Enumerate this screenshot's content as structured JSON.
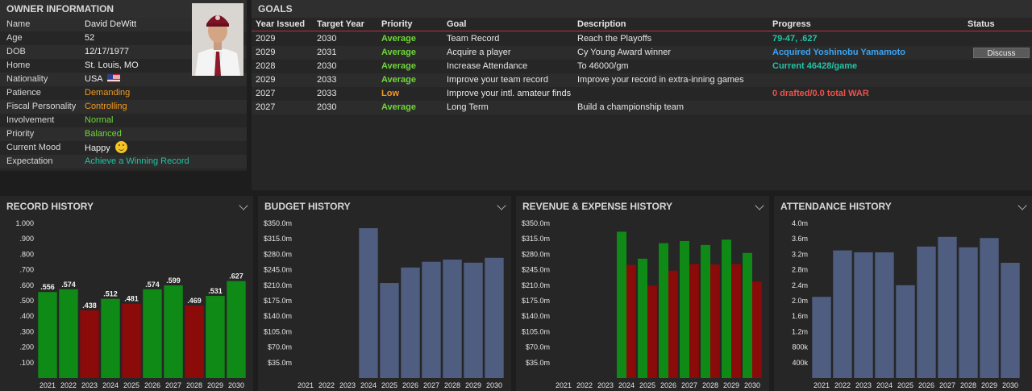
{
  "owner": {
    "title": "OWNER INFORMATION",
    "rows": [
      {
        "label": "Name",
        "value": "David DeWitt",
        "color": ""
      },
      {
        "label": "Age",
        "value": "52",
        "color": ""
      },
      {
        "label": "DOB",
        "value": "12/17/1977",
        "color": ""
      },
      {
        "label": "Home",
        "value": "St. Louis, MO",
        "color": ""
      },
      {
        "label": "Nationality",
        "value": "USA",
        "color": ""
      },
      {
        "label": "Patience",
        "value": "Demanding",
        "color": "orange"
      },
      {
        "label": "Fiscal Personality",
        "value": "Controlling",
        "color": "orange"
      },
      {
        "label": "Involvement",
        "value": "Normal",
        "color": "green"
      },
      {
        "label": "Priority",
        "value": "Balanced",
        "color": "green"
      },
      {
        "label": "Current Mood",
        "value": "Happy",
        "color": ""
      },
      {
        "label": "Expectation",
        "value": "Achieve a Winning Record",
        "color": "teal"
      }
    ]
  },
  "goals": {
    "title": "GOALS",
    "headers": [
      "Year Issued",
      "Target Year",
      "Priority",
      "Goal",
      "Description",
      "Progress",
      "Status"
    ],
    "rows": [
      {
        "issued": "2029",
        "target": "2030",
        "priority": "Average",
        "pcolor": "green",
        "goal": "Team Record",
        "desc": "Reach the Playoffs",
        "progress": "79-47, .627",
        "prcolor": "teal",
        "status": ""
      },
      {
        "issued": "2029",
        "target": "2031",
        "priority": "Average",
        "pcolor": "green",
        "goal": "Acquire a player",
        "desc": "Cy Young Award winner",
        "progress": "Acquired Yoshinobu Yamamoto",
        "prcolor": "blue",
        "status": "Discuss"
      },
      {
        "issued": "2028",
        "target": "2030",
        "priority": "Average",
        "pcolor": "green",
        "goal": "Increase Attendance",
        "desc": "To 46000/gm",
        "progress": "Current 46428/game",
        "prcolor": "teal",
        "status": ""
      },
      {
        "issued": "2029",
        "target": "2033",
        "priority": "Average",
        "pcolor": "green",
        "goal": "Improve your team record",
        "desc": "Improve your record in extra-inning games",
        "progress": "",
        "prcolor": "",
        "status": ""
      },
      {
        "issued": "2027",
        "target": "2033",
        "priority": "Low",
        "pcolor": "orange",
        "goal": "Improve your intl. amateur finds",
        "desc": "",
        "progress": "0 drafted/0.0 total WAR",
        "prcolor": "red",
        "status": ""
      },
      {
        "issued": "2027",
        "target": "2030",
        "priority": "Average",
        "pcolor": "green",
        "goal": "Long Term",
        "desc": "Build a championship team",
        "progress": "",
        "prcolor": "",
        "status": ""
      }
    ]
  },
  "chart_data": [
    {
      "type": "bar",
      "title": "RECORD HISTORY",
      "categories": [
        "2021",
        "2022",
        "2023",
        "2024",
        "2025",
        "2026",
        "2027",
        "2028",
        "2029",
        "2030"
      ],
      "values": [
        0.556,
        0.574,
        0.438,
        0.512,
        0.481,
        0.574,
        0.599,
        0.469,
        0.531,
        0.627
      ],
      "data_labels": [
        ".556",
        ".574",
        ".438",
        ".512",
        ".481",
        ".574",
        ".599",
        ".469",
        ".531",
        ".627"
      ],
      "ylim": [
        0,
        1.0
      ],
      "yticks": [
        ".100",
        ".200",
        ".300",
        ".400",
        ".500",
        ".600",
        ".700",
        ".800",
        ".900",
        "1.000"
      ],
      "colors": {
        "above": "#0f8a17",
        "below": "#8b0a0a"
      }
    },
    {
      "type": "bar",
      "title": "BUDGET HISTORY",
      "categories": [
        "2021",
        "2022",
        "2023",
        "2024",
        "2025",
        "2026",
        "2027",
        "2028",
        "2029",
        "2030"
      ],
      "values": [
        null,
        null,
        null,
        339,
        215,
        250,
        263,
        268,
        261,
        272
      ],
      "ylim": [
        0,
        350
      ],
      "yticks": [
        "$35.0m",
        "$70.0m",
        "$105.0m",
        "$140.0m",
        "$175.0m",
        "$210.0m",
        "$245.0m",
        "$280.0m",
        "$315.0m",
        "$350.0m"
      ],
      "color": "#4e5d80"
    },
    {
      "type": "bar",
      "title": "REVENUE & EXPENSE HISTORY",
      "categories": [
        "2021",
        "2022",
        "2023",
        "2024",
        "2025",
        "2026",
        "2027",
        "2028",
        "2029",
        "2030"
      ],
      "series": [
        {
          "values": [
            null,
            null,
            null,
            331,
            270,
            305,
            310,
            301,
            313,
            283
          ],
          "color": "#0f8a17"
        },
        {
          "values": [
            null,
            null,
            null,
            256,
            209,
            243,
            258,
            257,
            258,
            218
          ],
          "color": "#8b0a0a"
        }
      ],
      "ylim": [
        0,
        350
      ],
      "yticks": [
        "$35.0m",
        "$70.0m",
        "$105.0m",
        "$140.0m",
        "$175.0m",
        "$210.0m",
        "$245.0m",
        "$280.0m",
        "$315.0m",
        "$350.0m"
      ]
    },
    {
      "type": "bar",
      "title": "ATTENDANCE HISTORY",
      "categories": [
        "2021",
        "2022",
        "2023",
        "2024",
        "2025",
        "2026",
        "2027",
        "2028",
        "2029",
        "2030"
      ],
      "values": [
        2.1,
        3.3,
        3.25,
        3.25,
        2.4,
        3.4,
        3.65,
        3.38,
        3.62,
        2.98
      ],
      "ylim": [
        0,
        4.0
      ],
      "yticks": [
        "400k",
        "800k",
        "1.2m",
        "1.6m",
        "2.0m",
        "2.4m",
        "2.8m",
        "3.2m",
        "3.6m",
        "4.0m"
      ],
      "color": "#4e5d80"
    }
  ]
}
